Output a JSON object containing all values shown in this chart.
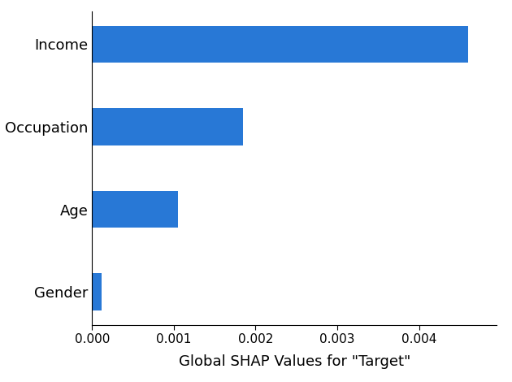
{
  "categories": [
    "Gender",
    "Age",
    "Occupation",
    "Income"
  ],
  "values": [
    0.00012,
    0.00105,
    0.00185,
    0.0046
  ],
  "bar_color": "#2878d6",
  "xlabel": "Global SHAP Values for \"Target\"",
  "xlabel_fontsize": 13,
  "ytick_fontsize": 13,
  "xtick_fontsize": 11,
  "background_color": "#ffffff",
  "bar_height": 0.45,
  "xlim": [
    0,
    0.00495
  ]
}
